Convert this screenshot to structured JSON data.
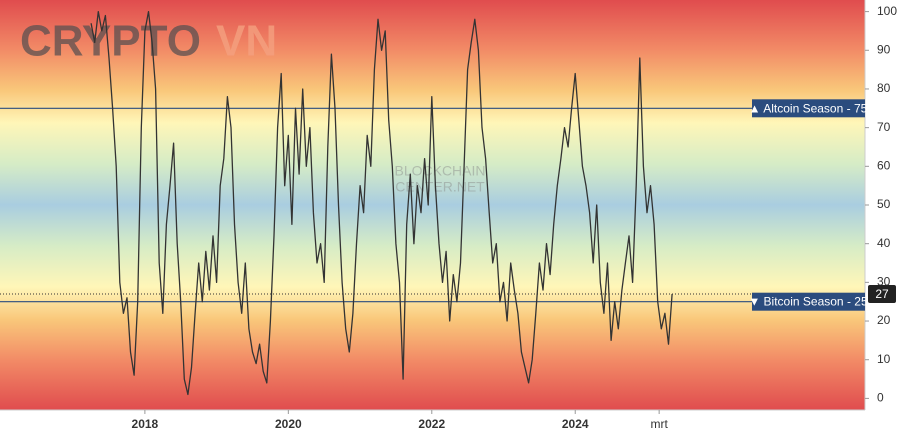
{
  "chart_data": {
    "type": "line",
    "watermark": [
      "CRYPTO",
      "VN"
    ],
    "watermark2": [
      "BLOCKCHAIN",
      "CENTER.NET"
    ],
    "x": [
      2017.25,
      2017.3,
      2017.35,
      2017.4,
      2017.45,
      2017.5,
      2017.55,
      2017.6,
      2017.65,
      2017.7,
      2017.75,
      2017.8,
      2017.85,
      2017.9,
      2017.95,
      2018,
      2018.05,
      2018.1,
      2018.15,
      2018.2,
      2018.25,
      2018.3,
      2018.35,
      2018.4,
      2018.45,
      2018.5,
      2018.55,
      2018.6,
      2018.65,
      2018.7,
      2018.75,
      2018.8,
      2018.85,
      2018.9,
      2018.95,
      2019,
      2019.05,
      2019.1,
      2019.15,
      2019.2,
      2019.25,
      2019.3,
      2019.35,
      2019.4,
      2019.45,
      2019.5,
      2019.55,
      2019.6,
      2019.65,
      2019.7,
      2019.75,
      2019.8,
      2019.85,
      2019.9,
      2019.95,
      2020,
      2020.05,
      2020.1,
      2020.15,
      2020.2,
      2020.25,
      2020.3,
      2020.35,
      2020.4,
      2020.45,
      2020.5,
      2020.55,
      2020.6,
      2020.65,
      2020.7,
      2020.75,
      2020.8,
      2020.85,
      2020.9,
      2020.95,
      2021,
      2021.05,
      2021.1,
      2021.15,
      2021.2,
      2021.25,
      2021.3,
      2021.35,
      2021.4,
      2021.45,
      2021.5,
      2021.55,
      2021.6,
      2021.65,
      2021.7,
      2021.75,
      2021.8,
      2021.85,
      2021.9,
      2021.95,
      2022,
      2022.05,
      2022.1,
      2022.15,
      2022.2,
      2022.25,
      2022.3,
      2022.35,
      2022.4,
      2022.45,
      2022.5,
      2022.55,
      2022.6,
      2022.65,
      2022.7,
      2022.75,
      2022.8,
      2022.85,
      2022.9,
      2022.95,
      2023,
      2023.05,
      2023.1,
      2023.15,
      2023.2,
      2023.25,
      2023.3,
      2023.35,
      2023.4,
      2023.45,
      2023.5,
      2023.55,
      2023.6,
      2023.65,
      2023.7,
      2023.75,
      2023.8,
      2023.85,
      2023.9,
      2023.95,
      2024,
      2024.05,
      2024.1,
      2024.15,
      2024.2,
      2024.25,
      2024.3,
      2024.35,
      2024.4,
      2024.45,
      2024.5,
      2024.55,
      2024.6,
      2024.65,
      2024.7,
      2024.75,
      2024.8,
      2024.85,
      2024.9,
      2024.95,
      2025,
      2025.05,
      2025.1,
      2025.15,
      2025.2,
      2025.25,
      2025.3,
      2025.35
    ],
    "series": [
      {
        "color": "#333333",
        "values": [
          97,
          92,
          100,
          95,
          99,
          88,
          75,
          60,
          30,
          22,
          26,
          12,
          6,
          25,
          70,
          95,
          100,
          92,
          80,
          35,
          22,
          45,
          55,
          66,
          40,
          25,
          5,
          1,
          8,
          22,
          35,
          25,
          38,
          28,
          42,
          30,
          55,
          62,
          78,
          70,
          45,
          30,
          22,
          35,
          18,
          12,
          9,
          14,
          7,
          4,
          20,
          42,
          70,
          84,
          55,
          68,
          45,
          75,
          58,
          80,
          60,
          70,
          48,
          35,
          40,
          30,
          65,
          89,
          75,
          50,
          30,
          18,
          12,
          22,
          40,
          55,
          48,
          68,
          60,
          85,
          98,
          90,
          95,
          72,
          60,
          40,
          30,
          5,
          45,
          58,
          40,
          55,
          48,
          62,
          50,
          78,
          55,
          40,
          30,
          38,
          20,
          32,
          25,
          35,
          60,
          85,
          92,
          98,
          90,
          70,
          62,
          48,
          35,
          40,
          25,
          30,
          20,
          35,
          28,
          22,
          12,
          8,
          4,
          10,
          22,
          35,
          28,
          40,
          32,
          45,
          55,
          62,
          70,
          65,
          75,
          84,
          72,
          60,
          55,
          48,
          35,
          50,
          30,
          22,
          35,
          15,
          25,
          18,
          28,
          35,
          42,
          30,
          55,
          88,
          60,
          48,
          55,
          45,
          25,
          18,
          22,
          14,
          27
        ]
      }
    ],
    "levels": [
      {
        "label": "▲ Altcoin Season -",
        "value": 75,
        "color": "#2b4c7e"
      },
      {
        "label": "▼ Bitcoin Season -",
        "value": 25,
        "color": "#2b4c7e"
      }
    ],
    "xlim": [
      2015.98,
      2028.04
    ],
    "xticks": [
      2018,
      2020,
      2022,
      2024,
      {
        "value": 2025.17,
        "label": "mrt"
      }
    ],
    "ylim": [
      -3,
      103
    ],
    "yticks": [
      0,
      10,
      20,
      30,
      40,
      50,
      60,
      70,
      80,
      90,
      100
    ]
  }
}
